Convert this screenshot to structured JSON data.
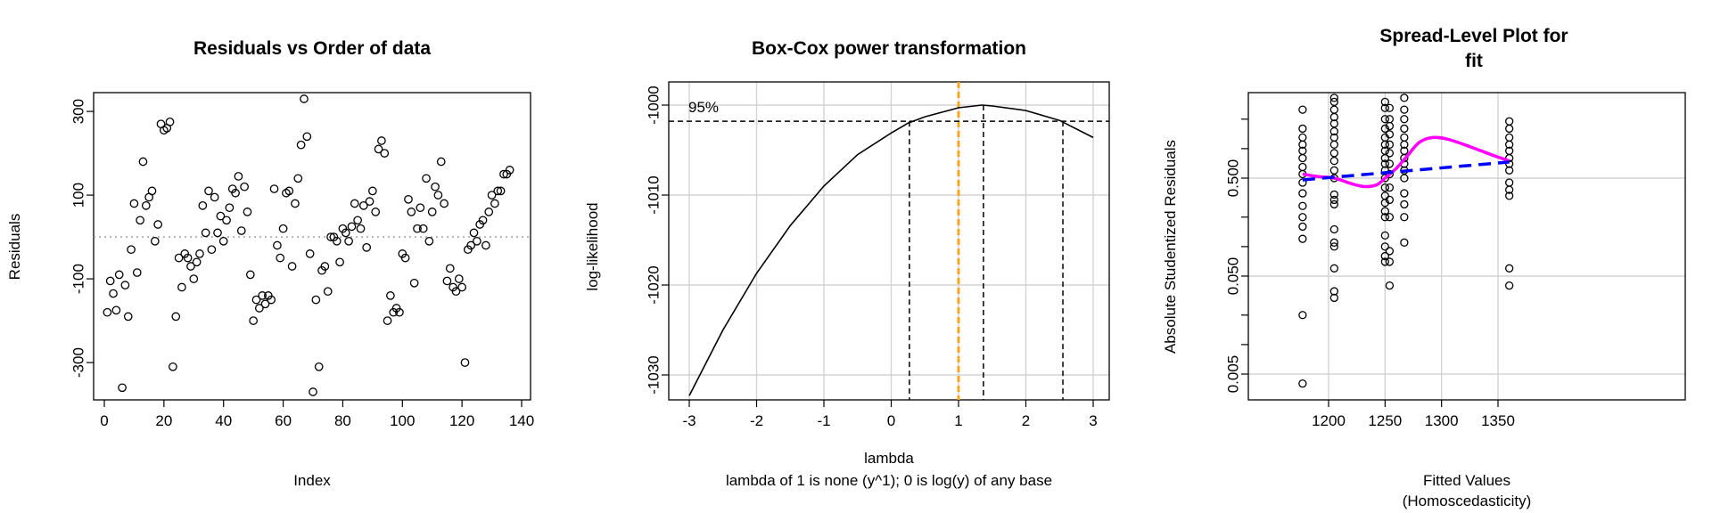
{
  "panels": {
    "order": {
      "title": "Residuals vs Order of data",
      "xlabel": "Index",
      "ylabel": "Residuals"
    },
    "boxcox": {
      "title": "Box-Cox power transformation",
      "xlabel": "lambda",
      "subtitle": "lambda of 1 is none (y^1); 0 is log(y) of any base",
      "ylabel": "log-likelihood",
      "ci_label": "95%"
    },
    "spread": {
      "title_line1": "Spread-Level Plot for",
      "title_line2": "fit",
      "xlabel_line1": "Fitted Values",
      "xlabel_line2": "(Homoscedasticity)",
      "ylabel": "Absolute Studentized Residuals"
    }
  },
  "chart_data": [
    {
      "type": "scatter",
      "title": "Residuals vs Order of data",
      "xlabel": "Index",
      "ylabel": "Residuals",
      "xlim": [
        0,
        140
      ],
      "ylim": [
        -370,
        330
      ],
      "xticks": [
        0,
        20,
        40,
        60,
        80,
        100,
        120,
        140
      ],
      "yticks": [
        -300,
        -100,
        100,
        300
      ],
      "reference_line": {
        "y": 0,
        "style": "dotted",
        "color": "#999999"
      },
      "grid": false,
      "series": [
        {
          "x": [
            1,
            2,
            3,
            4,
            5,
            6,
            7,
            8,
            9,
            10,
            11,
            12,
            13,
            14,
            15,
            16,
            17,
            18,
            19,
            20,
            21,
            22,
            23,
            24,
            25,
            26,
            27,
            28,
            29,
            30,
            31,
            32,
            33,
            34,
            35,
            36,
            37,
            38,
            39,
            40,
            41,
            42,
            43,
            44,
            45,
            46,
            47,
            48,
            49,
            50,
            51,
            52,
            53,
            54,
            55,
            56,
            57,
            58,
            59,
            60,
            61,
            62,
            63,
            64,
            65,
            66,
            67,
            68,
            69,
            70,
            71,
            72,
            73,
            74,
            75,
            76,
            77,
            78,
            79,
            80,
            81,
            82,
            83,
            84,
            85,
            86,
            87,
            88,
            89,
            90,
            91,
            92,
            93,
            94,
            95,
            96,
            97,
            98,
            99,
            100,
            101,
            102,
            103,
            104,
            105,
            106,
            107,
            108,
            109,
            110,
            111,
            112,
            113,
            114,
            115,
            116,
            117,
            118,
            119,
            120,
            121,
            122,
            123,
            124,
            125,
            126,
            127,
            128,
            129,
            130,
            131,
            132,
            133,
            134,
            135,
            136
          ],
          "y": [
            -180,
            -105,
            -135,
            -175,
            -90,
            -360,
            -115,
            -190,
            -30,
            80,
            -85,
            40,
            180,
            75,
            95,
            110,
            -10,
            30,
            270,
            255,
            260,
            275,
            -310,
            -190,
            -50,
            -120,
            -40,
            -50,
            -70,
            -100,
            -60,
            -40,
            75,
            10,
            110,
            -30,
            95,
            10,
            50,
            -10,
            40,
            70,
            115,
            105,
            145,
            15,
            120,
            60,
            -90,
            -200,
            -150,
            -170,
            -140,
            -160,
            -140,
            -150,
            115,
            -20,
            -50,
            20,
            105,
            110,
            -70,
            80,
            140,
            220,
            330,
            240,
            -40,
            -370,
            -150,
            -310,
            -80,
            -70,
            -130,
            0,
            0,
            -10,
            -60,
            20,
            10,
            -10,
            25,
            80,
            40,
            20,
            75,
            -25,
            85,
            110,
            60,
            210,
            230,
            200,
            -200,
            -140,
            -180,
            -170,
            -180,
            -40,
            -50,
            90,
            60,
            -110,
            20,
            70,
            20,
            140,
            -10,
            60,
            120,
            100,
            180,
            80,
            -105,
            -75,
            -120,
            -130,
            -100,
            -120,
            -300,
            -30,
            -20,
            10,
            -10,
            30,
            40,
            -20,
            60,
            100,
            80,
            110,
            110,
            150,
            150,
            160
          ]
        }
      ]
    },
    {
      "type": "line",
      "title": "Box-Cox power transformation",
      "xlabel": "lambda",
      "subtitle": "lambda of 1 is none (y^1); 0 is log(y) of any base",
      "ylabel": "log-likelihood",
      "xlim": [
        -3.1,
        3.1
      ],
      "ylim": [
        -1033,
        -999
      ],
      "xticks": [
        -3,
        -2,
        -1,
        0,
        1,
        2,
        3
      ],
      "yticks": [
        -1030,
        -1020,
        -1010,
        -1000
      ],
      "grid": true,
      "series": [
        {
          "x": [
            -3,
            -2.5,
            -2,
            -1.5,
            -1,
            -0.5,
            0,
            0.25,
            0.5,
            1,
            1.35,
            1.5,
            2,
            2.5,
            3
          ],
          "y": [
            -1032.3,
            -1025,
            -1018.7,
            -1013.4,
            -1009,
            -1005.5,
            -1003.1,
            -1002,
            -1001.3,
            -1000.3,
            -1000,
            -1000.1,
            -1000.6,
            -1001.7,
            -1003.6
          ]
        }
      ],
      "ci_level_label": "95%",
      "ci_threshold_y": -1001.8,
      "ci_lower_x": 0.27,
      "ci_upper_x": 2.55,
      "mle_x": 1.37,
      "reference_x": 1,
      "reference_color": "#F5A623"
    },
    {
      "type": "scatter",
      "title": "Spread-Level Plot for fit",
      "xlabel": "Fitted Values (Homoscedasticity)",
      "ylabel": "Absolute Studentized Residuals",
      "xlim": [
        1168,
        1372
      ],
      "ylog": true,
      "ylim": [
        0.0036,
        4.2
      ],
      "yticks": [
        0.005,
        0.05,
        0.5
      ],
      "xticks": [
        1200,
        1250,
        1300,
        1350
      ],
      "grid": true,
      "series": [
        {
          "x_value": 1177,
          "y": [
            0.004,
            0.02,
            0.12,
            0.16,
            0.2,
            0.26,
            0.35,
            0.45,
            0.55,
            0.65,
            0.8,
            0.95,
            1.1,
            1.3,
            1.6,
            2.5
          ]
        },
        {
          "x_value": 1205,
          "y": [
            0.03,
            0.035,
            0.06,
            0.1,
            0.11,
            0.15,
            0.27,
            0.3,
            0.34,
            0.5,
            0.6,
            0.75,
            0.9,
            1.1,
            1.3,
            1.5,
            1.8,
            2.1,
            2.5,
            3.0,
            3.3
          ]
        },
        {
          "x_value": 1250,
          "y": [
            0.07,
            0.08,
            0.1,
            0.13,
            0.2,
            0.23,
            0.28,
            0.33,
            0.4,
            0.5,
            0.6,
            0.7,
            0.8,
            0.95,
            1.1,
            1.3,
            1.6,
            2.0,
            2.6,
            3.0
          ]
        },
        {
          "x_value": 1254,
          "y": [
            0.04,
            0.07,
            0.09,
            0.2,
            0.3,
            0.4,
            0.55,
            0.7,
            0.9,
            1.1,
            1.4,
            1.7,
            2.0,
            2.6
          ]
        },
        {
          "x_value": 1267,
          "y": [
            0.11,
            0.2,
            0.27,
            0.35,
            0.5,
            0.6,
            0.7,
            0.8,
            0.95,
            1.1,
            1.3,
            1.6,
            2.0,
            2.5,
            3.3
          ]
        },
        {
          "x_value": 1360,
          "y": [
            0.04,
            0.06,
            0.33,
            0.38,
            0.45,
            0.6,
            0.7,
            0.8,
            0.95,
            1.1,
            1.3,
            1.6,
            1.9
          ]
        }
      ],
      "lowess": {
        "color": "#FF00FF",
        "x": [
          1177,
          1190,
          1205,
          1220,
          1232,
          1243,
          1250,
          1260,
          1270,
          1280,
          1292,
          1305,
          1320,
          1335,
          1350,
          1360
        ],
        "y": [
          0.55,
          0.52,
          0.5,
          0.44,
          0.41,
          0.43,
          0.5,
          0.63,
          0.85,
          1.15,
          1.3,
          1.25,
          1.1,
          0.95,
          0.82,
          0.75
        ]
      },
      "fit_line": {
        "color": "#0000FF",
        "style": "dashed",
        "x": [
          1177,
          1360
        ],
        "y": [
          0.48,
          0.73
        ]
      }
    }
  ]
}
